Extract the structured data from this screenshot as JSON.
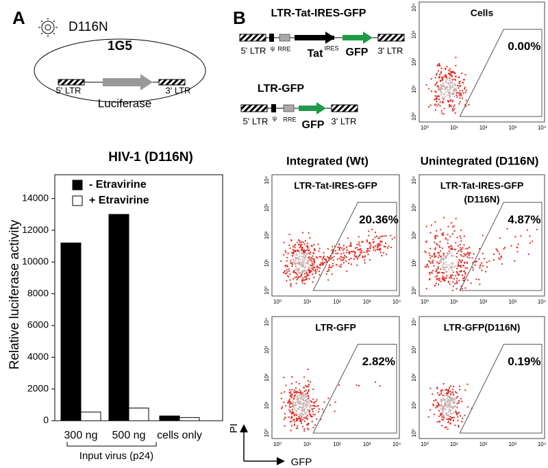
{
  "panel_a": {
    "label": "A",
    "virus": "D116N",
    "cell_line": "1G5",
    "ltr5": "5' LTR",
    "gene": "Luciferase",
    "ltr3": "3' LTR"
  },
  "chart_data": {
    "type": "bar",
    "title": "HIV-1 (D116N)",
    "y_label": "Relative luciferase activity",
    "x_label": "Input virus (p24)",
    "categories": [
      "300 ng",
      "500 ng",
      "cells only"
    ],
    "series": [
      {
        "name": "- Etravirine",
        "color": "#000000",
        "values": [
          11200,
          13000,
          300
        ]
      },
      {
        "name": "+ Etravirine",
        "color": "#ffffff",
        "values": [
          550,
          800,
          200
        ]
      }
    ],
    "ylim": [
      0,
      15500
    ],
    "yticks": [
      0,
      2000,
      4000,
      6000,
      8000,
      10000,
      12000,
      14000
    ],
    "legend": "upper left"
  },
  "panel_b": {
    "label": "B",
    "constructs": [
      {
        "name": "LTR-Tat-IRES-GFP",
        "parts": [
          "5' LTR",
          "ψ",
          "RRE",
          "Tat",
          "IRES",
          "GFP",
          "3' LTR"
        ]
      },
      {
        "name": "LTR-GFP",
        "parts": [
          "5' LTR",
          "ψ",
          "RRE",
          "GFP",
          "3' LTR"
        ]
      }
    ],
    "columns": [
      "Integrated (Wt)",
      "Unintegrated (D116N)"
    ],
    "flow_plots": [
      {
        "title": [
          "Cells"
        ],
        "gated": 0,
        "gated_label": "0.00%"
      },
      {
        "title": [
          "LTR-Tat-IRES-GFP"
        ],
        "gated": 20.36,
        "gated_label": "20.36%"
      },
      {
        "title": [
          "LTR-Tat-IRES-GFP",
          "(D116N)"
        ],
        "gated": 4.87,
        "gated_label": "4.87%"
      },
      {
        "title": [
          "LTR-GFP"
        ],
        "gated": 2.82,
        "gated_label": "2.82%"
      },
      {
        "title": [
          "LTR-GFP(D116N)"
        ],
        "gated": 0.19,
        "gated_label": "0.19%"
      }
    ],
    "axis_ticks": [
      "10⁰",
      "10¹",
      "10²",
      "10³",
      "10⁴"
    ],
    "x_label": "GFP",
    "y_label": "PI"
  }
}
